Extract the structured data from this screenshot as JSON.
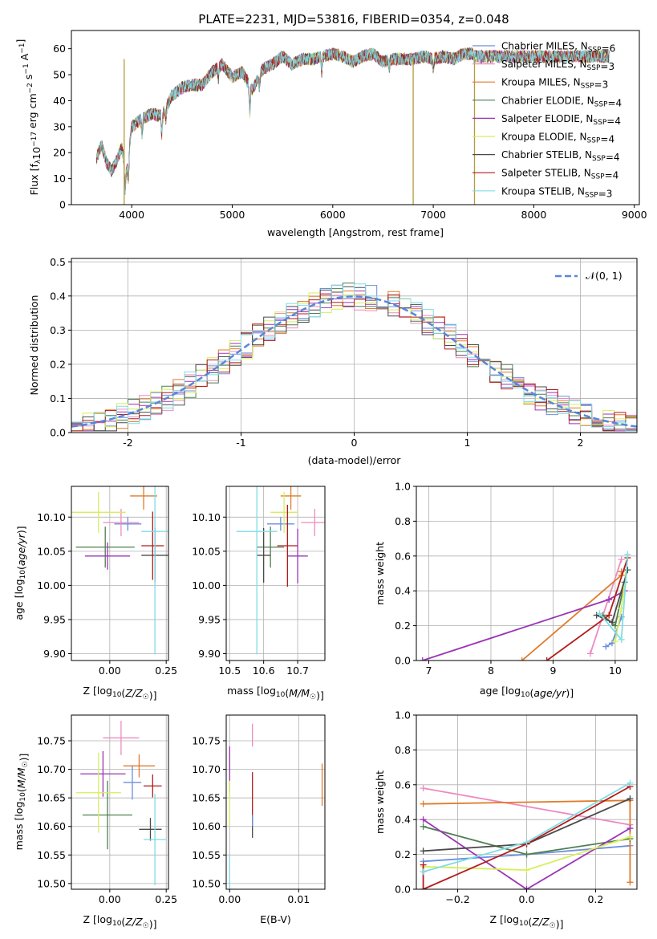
{
  "figure": {
    "title": "PLATE=2231, MJD=53816, FIBERID=0354, z=0.048"
  },
  "colors": {
    "Chabrier MILES": "#6a8fdc",
    "Salpeter MILES": "#ee8ac0",
    "Kroupa MILES": "#e07b2a",
    "Chabrier ELODIE": "#4f7f4f",
    "Salpeter ELODIE": "#9a35b5",
    "Kroupa ELODIE": "#d7ee5a",
    "Chabrier STELIB": "#4a4a4a",
    "Salpeter STELIB": "#b31b1b",
    "Kroupa STELIB": "#7fdde6"
  },
  "chart_data": [
    {
      "id": "spectrum",
      "type": "line",
      "title": "PLATE=2231, MJD=53816, FIBERID=0354, z=0.048",
      "xlabel": "wavelength [Angstrom, rest frame]",
      "ylabel": "Flux [f_λ10^-17 erg cm^-2 s^-1 A^-1]",
      "xlim": [
        3400,
        9050
      ],
      "ylim": [
        0,
        67
      ],
      "xticks": [
        4000,
        5000,
        6000,
        7000,
        8000,
        9000
      ],
      "yticks": [
        0,
        10,
        20,
        30,
        40,
        50,
        60
      ],
      "legend": "top-right",
      "series": [
        {
          "name": "Chabrier MILES, N_SSP=6"
        },
        {
          "name": "Salpeter MILES, N_SSP=3"
        },
        {
          "name": "Kroupa MILES, N_SSP=3"
        },
        {
          "name": "Chabrier ELODIE, N_SSP=4"
        },
        {
          "name": "Salpeter ELODIE, N_SSP=4"
        },
        {
          "name": "Kroupa ELODIE, N_SSP=4"
        },
        {
          "name": "Chabrier STELIB, N_SSP=4"
        },
        {
          "name": "Salpeter STELIB, N_SSP=4"
        },
        {
          "name": "Kroupa STELIB, N_SSP=3"
        }
      ],
      "envelope": {
        "x": [
          3650,
          3700,
          3750,
          3800,
          3850,
          3900,
          3950,
          4000,
          4100,
          4200,
          4300,
          4400,
          4500,
          4600,
          4700,
          4800,
          4900,
          5000,
          5100,
          5200,
          5300,
          5400,
          5500,
          5600,
          5700,
          5800,
          5900,
          6000,
          6100,
          6200,
          6300,
          6400,
          6500,
          6600,
          6700,
          6800,
          6900,
          7000,
          7100,
          7200,
          7300,
          7400
        ],
        "y": [
          18,
          23,
          16,
          13,
          17,
          22,
          12,
          30,
          33,
          35,
          34,
          42,
          45,
          46,
          46,
          51,
          54,
          49,
          51,
          44,
          52,
          54,
          57,
          54,
          56,
          56,
          57,
          58,
          57,
          55,
          57,
          58,
          55,
          56,
          56,
          56,
          57,
          56,
          57,
          56,
          58,
          58
        ]
      },
      "drops": [
        {
          "x": 3925,
          "y": 0
        },
        {
          "x": 6800,
          "y": 0
        },
        {
          "x": 7410,
          "y": 0
        }
      ]
    },
    {
      "id": "residuals",
      "type": "line",
      "xlabel": "(data-model)/error",
      "ylabel": "Normed distribution",
      "xlim": [
        -2.5,
        2.5
      ],
      "ylim": [
        0,
        0.51
      ],
      "xticks": [
        -2,
        -1,
        0,
        1,
        2
      ],
      "yticks": [
        0.0,
        0.1,
        0.2,
        0.3,
        0.4,
        0.5
      ],
      "legend": "top-right",
      "gaussian_label": "𝒩(0, 1)"
    },
    {
      "id": "age-vs-Z",
      "type": "scatter",
      "xlabel": "Z [log10(Z/Z☉)]",
      "ylabel": "age  [log10(age/yr)]",
      "xlim": [
        -0.17,
        0.26
      ],
      "ylim": [
        9.89,
        10.145
      ],
      "xticks": [
        0.0,
        0.25
      ],
      "xticklabels": [
        "0.00",
        "0.25"
      ],
      "yticks": [
        9.9,
        9.95,
        10.0,
        10.05,
        10.1
      ],
      "yticklabels": [
        "9.90",
        "9.95",
        "10.00",
        "10.05",
        "10.10"
      ],
      "points": [
        {
          "model": "Chabrier MILES",
          "x": 0.08,
          "y": 10.09,
          "xerr": 0.06,
          "yerr": 0.01
        },
        {
          "model": "Salpeter MILES",
          "x": 0.05,
          "y": 10.092,
          "xerr": 0.08,
          "yerr": 0.02
        },
        {
          "model": "Kroupa MILES",
          "x": 0.15,
          "y": 10.131,
          "xerr": 0.06,
          "yerr": 0.02
        },
        {
          "model": "Chabrier ELODIE",
          "x": -0.02,
          "y": 10.056,
          "xerr": 0.13,
          "yerr": 0.03
        },
        {
          "model": "Salpeter ELODIE",
          "x": -0.01,
          "y": 10.043,
          "xerr": 0.1,
          "yerr": 0.02
        },
        {
          "model": "Kroupa ELODIE",
          "x": -0.05,
          "y": 10.107,
          "xerr": 0.12,
          "yerr": 0.03
        },
        {
          "model": "Chabrier STELIB",
          "x": 0.2,
          "y": 10.044,
          "xerr": 0.06,
          "yerr": 0.04
        },
        {
          "model": "Salpeter STELIB",
          "x": 0.19,
          "y": 10.058,
          "xerr": 0.05,
          "yerr": 0.05
        },
        {
          "model": "Kroupa STELIB",
          "x": 0.2,
          "y": 10.079,
          "xerr": 0.06,
          "yerr": 0.18
        }
      ]
    },
    {
      "id": "age-vs-mass",
      "type": "scatter",
      "xlabel": "mass [log10(M/M☉)]",
      "xlim": [
        10.49,
        10.78
      ],
      "ylim": [
        9.89,
        10.145
      ],
      "xticks": [
        10.5,
        10.6,
        10.7
      ],
      "xticklabels": [
        "10.5",
        "10.6",
        "10.7"
      ],
      "yticks": [
        9.9,
        9.95,
        10.0,
        10.05,
        10.1
      ],
      "yticklabels": [
        "9.90",
        "9.95",
        "10.00",
        "10.05",
        "10.10"
      ],
      "points": [
        {
          "model": "Chabrier MILES",
          "x": 10.65,
          "y": 10.09,
          "xerr": 0.04,
          "yerr": 0.01
        },
        {
          "model": "Salpeter MILES",
          "x": 10.75,
          "y": 10.092,
          "xerr": 0.04,
          "yerr": 0.02
        },
        {
          "model": "Kroupa MILES",
          "x": 10.68,
          "y": 10.131,
          "xerr": 0.03,
          "yerr": 0.02
        },
        {
          "model": "Chabrier ELODIE",
          "x": 10.62,
          "y": 10.056,
          "xerr": 0.04,
          "yerr": 0.03
        },
        {
          "model": "Salpeter ELODIE",
          "x": 10.7,
          "y": 10.043,
          "xerr": 0.03,
          "yerr": 0.04
        },
        {
          "model": "Kroupa ELODIE",
          "x": 10.66,
          "y": 10.107,
          "xerr": 0.04,
          "yerr": 0.03
        },
        {
          "model": "Chabrier STELIB",
          "x": 10.6,
          "y": 10.044,
          "xerr": 0.02,
          "yerr": 0.04
        },
        {
          "model": "Salpeter STELIB",
          "x": 10.67,
          "y": 10.058,
          "xerr": 0.03,
          "yerr": 0.06
        },
        {
          "model": "Kroupa STELIB",
          "x": 10.58,
          "y": 10.079,
          "xerr": 0.06,
          "yerr": 0.18
        }
      ]
    },
    {
      "id": "weight-vs-age",
      "type": "line",
      "xlabel": "age  [log10(age/yr)]",
      "ylabel": "mass weight",
      "xlim": [
        6.8,
        10.35
      ],
      "ylim": [
        0,
        1.0
      ],
      "xticks": [
        7,
        8,
        9,
        10
      ],
      "yticks": [
        0.0,
        0.2,
        0.4,
        0.6,
        0.8,
        1.0
      ],
      "series": [
        {
          "model": "Chabrier MILES",
          "x": [
            9.85,
            9.95,
            10.1
          ],
          "y": [
            0.08,
            0.1,
            0.25
          ]
        },
        {
          "model": "Salpeter MILES",
          "x": [
            9.6,
            10.1
          ],
          "y": [
            0.04,
            0.58
          ]
        },
        {
          "model": "Kroupa MILES",
          "x": [
            8.5,
            10.1,
            10.1
          ],
          "y": [
            0.0,
            0.49,
            0.51
          ]
        },
        {
          "model": "Chabrier ELODIE",
          "x": [
            9.8,
            10.0,
            10.15
          ],
          "y": [
            0.26,
            0.2,
            0.45
          ]
        },
        {
          "model": "Salpeter ELODIE",
          "x": [
            6.9,
            9.9,
            10.15
          ],
          "y": [
            0.0,
            0.35,
            0.4
          ]
        },
        {
          "model": "Kroupa ELODIE",
          "x": [
            10.0,
            10.1,
            10.2
          ],
          "y": [
            0.11,
            0.3,
            0.59
          ]
        },
        {
          "model": "Chabrier STELIB",
          "x": [
            9.7,
            9.95,
            10.2
          ],
          "y": [
            0.26,
            0.22,
            0.52
          ]
        },
        {
          "model": "Salpeter STELIB",
          "x": [
            8.9,
            9.9,
            10.2
          ],
          "y": [
            0.0,
            0.26,
            0.59
          ]
        },
        {
          "model": "Kroupa STELIB",
          "x": [
            9.75,
            10.1,
            10.2
          ],
          "y": [
            0.27,
            0.12,
            0.61
          ]
        }
      ]
    },
    {
      "id": "mass-vs-Z",
      "type": "scatter",
      "xlabel": "Z [log10(Z/Z☉)]",
      "ylabel": "mass [log10(M/M☉)]",
      "xlim": [
        -0.17,
        0.26
      ],
      "ylim": [
        10.49,
        10.795
      ],
      "xticks": [
        0.0,
        0.25
      ],
      "xticklabels": [
        "0.00",
        "0.25"
      ],
      "yticks": [
        10.5,
        10.55,
        10.6,
        10.65,
        10.7,
        10.75
      ],
      "yticklabels": [
        "10.50",
        "10.55",
        "10.60",
        "10.65",
        "10.70",
        "10.75"
      ],
      "points": [
        {
          "model": "Chabrier MILES",
          "x": 0.1,
          "y": 10.677,
          "xerr": 0.04,
          "yerr": 0.03
        },
        {
          "model": "Salpeter MILES",
          "x": 0.05,
          "y": 10.755,
          "xerr": 0.08,
          "yerr": 0.03
        },
        {
          "model": "Kroupa MILES",
          "x": 0.13,
          "y": 10.706,
          "xerr": 0.07,
          "yerr": 0.02
        },
        {
          "model": "Chabrier ELODIE",
          "x": -0.01,
          "y": 10.62,
          "xerr": 0.11,
          "yerr": 0.06
        },
        {
          "model": "Salpeter ELODIE",
          "x": -0.03,
          "y": 10.692,
          "xerr": 0.1,
          "yerr": 0.04
        },
        {
          "model": "Kroupa ELODIE",
          "x": -0.05,
          "y": 10.659,
          "xerr": 0.1,
          "yerr": 0.07
        },
        {
          "model": "Chabrier STELIB",
          "x": 0.18,
          "y": 10.595,
          "xerr": 0.05,
          "yerr": 0.02
        },
        {
          "model": "Salpeter STELIB",
          "x": 0.19,
          "y": 10.671,
          "xerr": 0.04,
          "yerr": 0.02
        },
        {
          "model": "Kroupa STELIB",
          "x": 0.2,
          "y": 10.577,
          "xerr": 0.05,
          "yerr": 0.08
        }
      ]
    },
    {
      "id": "mass-vs-ebv",
      "type": "scatter",
      "xlabel": "E(B-V)",
      "xlim": [
        -0.0005,
        0.0138
      ],
      "ylim": [
        10.49,
        10.795
      ],
      "xticks": [
        0.0,
        0.01
      ],
      "xticklabels": [
        "0.00",
        "0.01"
      ],
      "yticks": [
        10.5,
        10.55,
        10.6,
        10.65,
        10.7,
        10.75
      ],
      "yticklabels": [
        "10.50",
        "10.55",
        "10.60",
        "10.65",
        "10.70",
        "10.75"
      ],
      "points": [
        {
          "model": "Salpeter MILES",
          "x": 0.0033,
          "y": 10.76,
          "xerr": 0,
          "yerr": 0.02
        },
        {
          "model": "Kroupa MILES",
          "x": 0.0134,
          "y": 10.673,
          "xerr": 0,
          "yerr": 0.037
        },
        {
          "model": "Salpeter ELODIE",
          "x": 0.0,
          "y": 10.7,
          "xerr": 0,
          "yerr": 0.04
        },
        {
          "model": "Kroupa ELODIE",
          "x": 0.0,
          "y": 10.64,
          "xerr": 0,
          "yerr": 0.04
        },
        {
          "model": "Salpeter STELIB",
          "x": 0.0033,
          "y": 10.655,
          "xerr": 0,
          "yerr": 0.04
        },
        {
          "model": "Chabrier STELIB",
          "x": 0.0033,
          "y": 10.6,
          "xerr": 0,
          "yerr": 0.02
        },
        {
          "model": "Chabrier MILES",
          "x": 0.0033,
          "y": 10.61,
          "xerr": 0,
          "yerr": 0.01
        },
        {
          "model": "Kroupa STELIB",
          "x": 0.0,
          "y": 10.52,
          "xerr": 0,
          "yerr": 0.03
        }
      ]
    },
    {
      "id": "weight-vs-Z",
      "type": "line",
      "xlabel": "Z [log10(Z/Z☉)]",
      "ylabel": "mass weight",
      "xlim": [
        -0.32,
        0.32
      ],
      "ylim": [
        0,
        1.0
      ],
      "xticks": [
        -0.2,
        0.0,
        0.2
      ],
      "xticklabels": [
        "−0.2",
        "0.0",
        "0.2"
      ],
      "yticks": [
        0.0,
        0.2,
        0.4,
        0.6,
        0.8,
        1.0
      ],
      "series": [
        {
          "model": "Chabrier MILES",
          "x": [
            -0.3,
            0.0,
            0.3
          ],
          "y": [
            0.16,
            0.2,
            0.25
          ]
        },
        {
          "model": "Salpeter MILES",
          "x": [
            -0.3,
            0.3
          ],
          "y": [
            0.58,
            0.37
          ]
        },
        {
          "model": "Kroupa MILES",
          "x": [
            -0.3,
            0.3,
            0.3
          ],
          "y": [
            0.49,
            0.51,
            0.04
          ]
        },
        {
          "model": "Chabrier ELODIE",
          "x": [
            -0.3,
            0.0,
            0.3
          ],
          "y": [
            0.36,
            0.2,
            0.29
          ]
        },
        {
          "model": "Salpeter ELODIE",
          "x": [
            -0.3,
            0.0,
            0.3
          ],
          "y": [
            0.4,
            0.0,
            0.35
          ]
        },
        {
          "model": "Kroupa ELODIE",
          "x": [
            -0.3,
            0.0,
            0.3
          ],
          "y": [
            0.13,
            0.11,
            0.3
          ]
        },
        {
          "model": "Chabrier STELIB",
          "x": [
            -0.3,
            0.0,
            0.3
          ],
          "y": [
            0.22,
            0.26,
            0.52
          ]
        },
        {
          "model": "Salpeter STELIB",
          "x": [
            -0.3,
            -0.3,
            0.0,
            0.3
          ],
          "y": [
            0.14,
            0.0,
            0.26,
            0.59
          ]
        },
        {
          "model": "Kroupa STELIB",
          "x": [
            -0.3,
            0.0,
            0.3
          ],
          "y": [
            0.1,
            0.27,
            0.61
          ]
        }
      ]
    }
  ]
}
